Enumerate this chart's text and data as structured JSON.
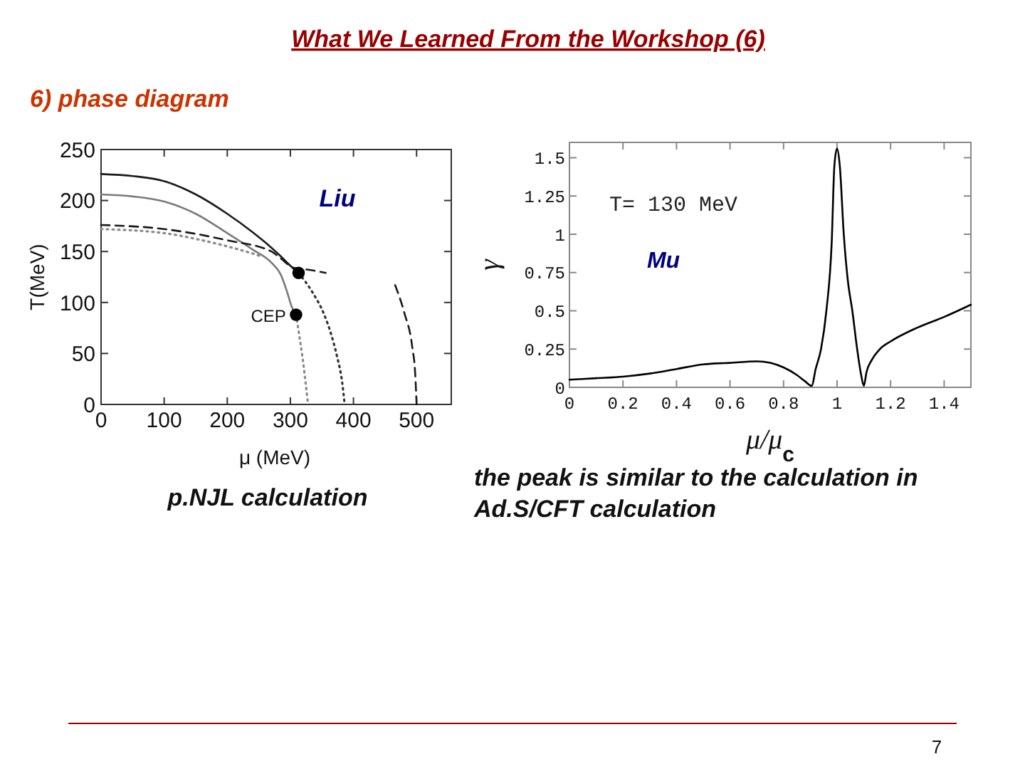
{
  "chart_data": [
    {
      "type": "line",
      "title": "What We Learned From the Workshop (6)",
      "subtitle": "6) phase diagram",
      "xlabel": "μ (MeV)",
      "ylabel": "T(MeV)",
      "xlim": [
        0,
        555
      ],
      "ylim": [
        0,
        250
      ],
      "xticks": [
        0,
        100,
        200,
        300,
        400,
        500
      ],
      "yticks": [
        0,
        50,
        100,
        150,
        200,
        250
      ],
      "series": [
        {
          "color": "#1a1a1a",
          "line_style": "solid",
          "x": [
            0,
            50,
            100,
            150,
            200,
            240,
            260,
            280,
            300,
            305
          ],
          "values": [
            226,
            224,
            219,
            206,
            187,
            169,
            159,
            148,
            136,
            133
          ]
        },
        {
          "color": "#7a7a7a",
          "line_style": "solid",
          "x": [
            0,
            50,
            100,
            150,
            200,
            240,
            270,
            285,
            295,
            302,
            309
          ],
          "values": [
            206,
            204,
            199,
            187,
            168,
            152,
            139,
            127,
            110,
            96,
            88
          ]
        },
        {
          "color": "#1a1a1a",
          "line_style": "dashed",
          "x": [
            0,
            100,
            200,
            270,
            285,
            305,
            330,
            356
          ],
          "values": [
            176,
            172,
            161,
            150,
            143,
            134,
            132,
            129
          ]
        },
        {
          "color": "#8a8a8a",
          "line_style": "dotted",
          "x": [
            0,
            100,
            160,
            200,
            240,
            255
          ],
          "values": [
            172,
            168,
            161,
            155,
            148,
            145
          ]
        },
        {
          "color": "#8a8a8a",
          "line_style": "dotted",
          "x": [
            309,
            314,
            319,
            324,
            328
          ],
          "values": [
            88,
            68,
            47,
            22,
            0
          ]
        },
        {
          "color": "#333333",
          "line_style": "dotted",
          "x": [
            313,
            335,
            353,
            365,
            374,
            382,
            386
          ],
          "values": [
            129,
            110,
            89,
            68,
            47,
            22,
            0
          ]
        },
        {
          "color": "#1a1a1a",
          "line_style": "dashed",
          "x": [
            466,
            481,
            493,
            498,
            500
          ],
          "values": [
            117,
            89,
            57,
            28,
            0
          ]
        },
        {
          "type": "scatter",
          "color": "#000000",
          "marker": "circle",
          "x": [
            309,
            313
          ],
          "values": [
            88,
            129
          ]
        }
      ],
      "annotations": [
        "Liu",
        {
          "text": "CEP",
          "x": 309,
          "y": 88
        },
        "p.NJL calculation",
        "7"
      ]
    },
    {
      "type": "line",
      "xlabel": "μ/μ$_{c}$",
      "ylabel": "γ",
      "xlim": [
        0,
        1.5
      ],
      "ylim": [
        0,
        1.6
      ],
      "xticks": [
        0,
        0.2,
        0.4,
        0.6,
        0.8,
        1,
        1.2,
        1.4
      ],
      "yticks": [
        0,
        0.25,
        0.5,
        0.75,
        1,
        1.25,
        1.5
      ],
      "series": [
        {
          "color": "#000000",
          "line_style": "solid",
          "x": [
            0,
            0.1,
            0.2,
            0.3,
            0.4,
            0.5,
            0.6,
            0.7,
            0.75,
            0.8,
            0.85,
            0.88,
            0.905,
            0.92,
            0.94,
            0.96,
            0.98,
            0.99,
            1,
            1.01,
            1.025,
            1.04,
            1.057,
            1.075,
            1.09,
            1.1,
            1.11,
            1.13,
            1.16,
            1.2,
            1.3,
            1.4,
            1.5
          ],
          "values": [
            0.05,
            0.06,
            0.07,
            0.09,
            0.12,
            0.15,
            0.16,
            0.17,
            0.16,
            0.13,
            0.08,
            0.04,
            0.01,
            0.12,
            0.25,
            0.5,
            0.95,
            1.45,
            1.56,
            1.45,
            1,
            0.7,
            0.5,
            0.25,
            0.08,
            0.01,
            0.1,
            0.18,
            0.25,
            0.3,
            0.39,
            0.46,
            0.54
          ]
        }
      ],
      "annotations": [
        "T= 130 MeV",
        "Mu",
        "the peak is similar to the calculation in Ad.S/CFT calculation"
      ]
    }
  ]
}
